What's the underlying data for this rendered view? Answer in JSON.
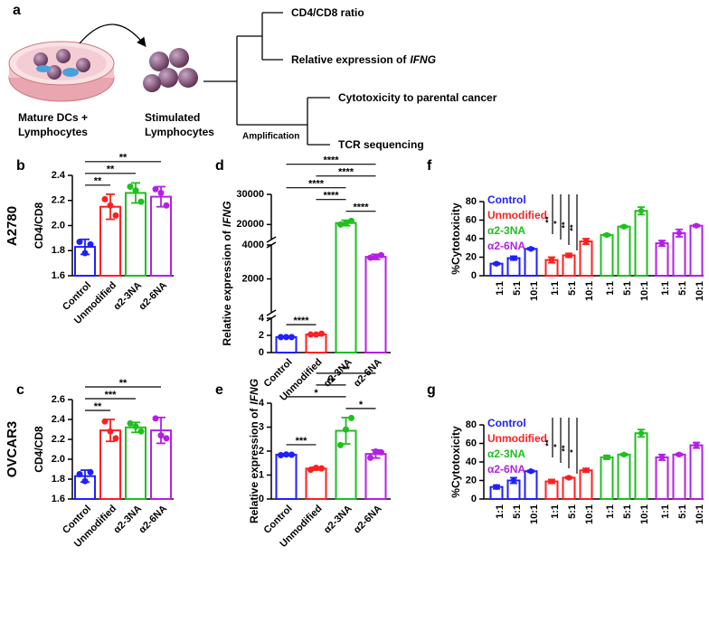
{
  "diagram": {
    "letter": "a",
    "dish_label": [
      "Mature DCs +",
      "Lymphocytes"
    ],
    "cells_label": [
      "Stimulated",
      "Lymphocytes"
    ],
    "branch_label": "Amplification",
    "outcomes": [
      [
        "CD4/CD8 ratio"
      ],
      [
        "Relative expression of",
        "IFNG"
      ],
      [
        "Cytotoxicity to parental cancer"
      ],
      [
        "TCR sequencing"
      ]
    ]
  },
  "rows": [
    "A2780",
    "OVCAR3"
  ],
  "chart_data": [
    {
      "type": "bar",
      "panel": "b",
      "ylabel": "CD4/CD8",
      "categories": [
        "Control",
        "Unmodified",
        "α2-3NA",
        "α2-6NA"
      ],
      "colors": [
        "#1f1fff",
        "#ff1f1f",
        "#1fbf1f",
        "#b41fe6"
      ],
      "values": [
        1.83,
        2.15,
        2.26,
        2.23
      ],
      "errors": [
        0.06,
        0.1,
        0.08,
        0.08
      ],
      "points": [
        [
          1.87,
          1.78,
          1.85
        ],
        [
          2.21,
          2.16,
          2.08
        ],
        [
          2.31,
          2.28,
          2.19
        ],
        [
          2.29,
          2.26,
          2.16
        ]
      ],
      "ylim": [
        1.6,
        2.4
      ],
      "yticks": [
        1.6,
        1.8,
        {
          "value": 2,
          "label": "2.0"
        },
        2.2,
        2.4
      ],
      "annotations": [
        {
          "from": 0,
          "to": 1,
          "label": "**"
        },
        {
          "from": 0,
          "to": 2,
          "label": "**"
        },
        {
          "from": 0,
          "to": 3,
          "label": "**"
        }
      ]
    },
    {
      "type": "bar",
      "panel": "c",
      "ylabel": "CD4/CD8",
      "categories": [
        "Control",
        "Unmodified",
        "α2-3NA",
        "α2-6NA"
      ],
      "colors": [
        "#1f1fff",
        "#ff1f1f",
        "#1fbf1f",
        "#b41fe6"
      ],
      "values": [
        1.83,
        2.29,
        2.32,
        2.29
      ],
      "errors": [
        0.06,
        0.11,
        0.05,
        0.13
      ],
      "points": [
        [
          1.85,
          1.78,
          1.87
        ],
        [
          2.38,
          2.28,
          2.21
        ],
        [
          2.36,
          2.33,
          2.28
        ],
        [
          2.41,
          2.24,
          2.21
        ]
      ],
      "ylim": [
        1.6,
        2.6
      ],
      "yticks": [
        1.6,
        1.8,
        {
          "value": 2,
          "label": "2.0"
        },
        2.2,
        2.4,
        2.6
      ],
      "annotations": [
        {
          "from": 0,
          "to": 1,
          "label": "**"
        },
        {
          "from": 0,
          "to": 2,
          "label": "***"
        },
        {
          "from": 0,
          "to": 3,
          "label": "**"
        }
      ]
    },
    {
      "type": "bar",
      "panel": "d",
      "ylabel": [
        "Relative expression of",
        "IFNG"
      ],
      "categories": [
        "Control",
        "Unmodified",
        "α2-3NA",
        "α2-6NA"
      ],
      "colors": [
        "#1f1fff",
        "#ff1f1f",
        "#1fbf1f",
        "#b41fe6"
      ],
      "values": [
        1.8,
        2.1,
        20500,
        3300
      ],
      "errors": [
        0.05,
        0.1,
        900,
        150
      ],
      "points": [
        [
          1.8,
          1.8,
          1.8
        ],
        [
          2.1,
          2.1,
          2.2
        ],
        [
          20000,
          20400,
          21200
        ],
        [
          3250,
          3300,
          3400
        ]
      ],
      "ylim": [
        0,
        30000
      ],
      "axis_breaks": [
        [
          4,
          4
        ],
        [
          4000,
          15000
        ]
      ],
      "yticks": [
        0,
        2,
        4,
        2000,
        4000,
        20000,
        30000
      ],
      "annotations": [
        {
          "from": 0,
          "to": 1,
          "label": "****"
        },
        {
          "from": 2,
          "to": 3,
          "label": "****"
        },
        {
          "from": 1,
          "to": 2,
          "label": "****"
        },
        {
          "from": 0,
          "to": 2,
          "label": "****"
        },
        {
          "from": 1,
          "to": 3,
          "label": "****"
        },
        {
          "from": 0,
          "to": 3,
          "label": "****"
        }
      ]
    },
    {
      "type": "bar",
      "panel": "e",
      "ylabel": [
        "Relative expression of",
        "IFNG"
      ],
      "categories": [
        "Control",
        "Unmodified",
        "α2-3NA",
        "α2-6NA"
      ],
      "colors": [
        "#1f1fff",
        "#ff1f1f",
        "#1fbf1f",
        "#b41fe6"
      ],
      "values": [
        1.85,
        1.27,
        2.85,
        1.88
      ],
      "errors": [
        0.04,
        0.06,
        0.55,
        0.17
      ],
      "points": [
        [
          1.83,
          1.86,
          1.85
        ],
        [
          1.22,
          1.3,
          1.28
        ],
        [
          2.25,
          2.9,
          3.38
        ],
        [
          1.72,
          1.98,
          1.95
        ]
      ],
      "ylim": [
        0,
        4
      ],
      "yticks": [
        0,
        1,
        2,
        3,
        4
      ],
      "annotations": [
        {
          "from": 0,
          "to": 1,
          "label": "***"
        },
        {
          "from": 2,
          "to": 3,
          "label": "*"
        },
        {
          "from": 0,
          "to": 2,
          "label": "*"
        },
        {
          "from": 1,
          "to": 2,
          "label": "**"
        },
        {
          "from": 1,
          "to": 3,
          "label": "**"
        }
      ]
    },
    {
      "type": "grouped_bar",
      "panel": "f",
      "ylabel": "%Cytotoxicity",
      "categories": [
        "1:1",
        "5:1",
        "10:1"
      ],
      "legend": "upper left",
      "series": [
        {
          "name": "Control",
          "color": "#1f1fff",
          "values": [
            13,
            19,
            29
          ],
          "errors": [
            1,
            2,
            1
          ]
        },
        {
          "name": "Unmodified",
          "color": "#ff1f1f",
          "values": [
            17,
            22,
            37
          ],
          "errors": [
            3,
            2,
            3
          ]
        },
        {
          "name": "α2-3NA",
          "color": "#1fbf1f",
          "values": [
            44,
            53,
            70
          ],
          "errors": [
            1,
            1,
            4
          ]
        },
        {
          "name": "α2-6NA",
          "color": "#b41fe6",
          "values": [
            35,
            46,
            54
          ],
          "errors": [
            3,
            4,
            1
          ]
        }
      ],
      "ylim": [
        0,
        80
      ],
      "yticks": [
        0,
        20,
        40,
        60,
        80
      ],
      "annotations": [
        "**",
        "*",
        "**",
        "**"
      ]
    },
    {
      "type": "grouped_bar",
      "panel": "g",
      "ylabel": "%Cytotoxicity",
      "categories": [
        "1:1",
        "5:1",
        "10:1"
      ],
      "legend": "upper left",
      "series": [
        {
          "name": "Control",
          "color": "#1f1fff",
          "values": [
            13,
            20,
            30
          ],
          "errors": [
            2,
            3,
            1
          ]
        },
        {
          "name": "Unmodified",
          "color": "#ff1f1f",
          "values": [
            19,
            23,
            31
          ],
          "errors": [
            2,
            1,
            2
          ]
        },
        {
          "name": "α2-3NA",
          "color": "#1fbf1f",
          "values": [
            45,
            48,
            71
          ],
          "errors": [
            2,
            1,
            4
          ]
        },
        {
          "name": "α2-6NA",
          "color": "#b41fe6",
          "values": [
            45,
            48,
            58
          ],
          "errors": [
            3,
            1,
            3
          ]
        }
      ],
      "ylim": [
        0,
        80
      ],
      "yticks": [
        0,
        20,
        40,
        60,
        80
      ],
      "annotations": [
        "**",
        "*",
        "**",
        "*"
      ]
    }
  ]
}
